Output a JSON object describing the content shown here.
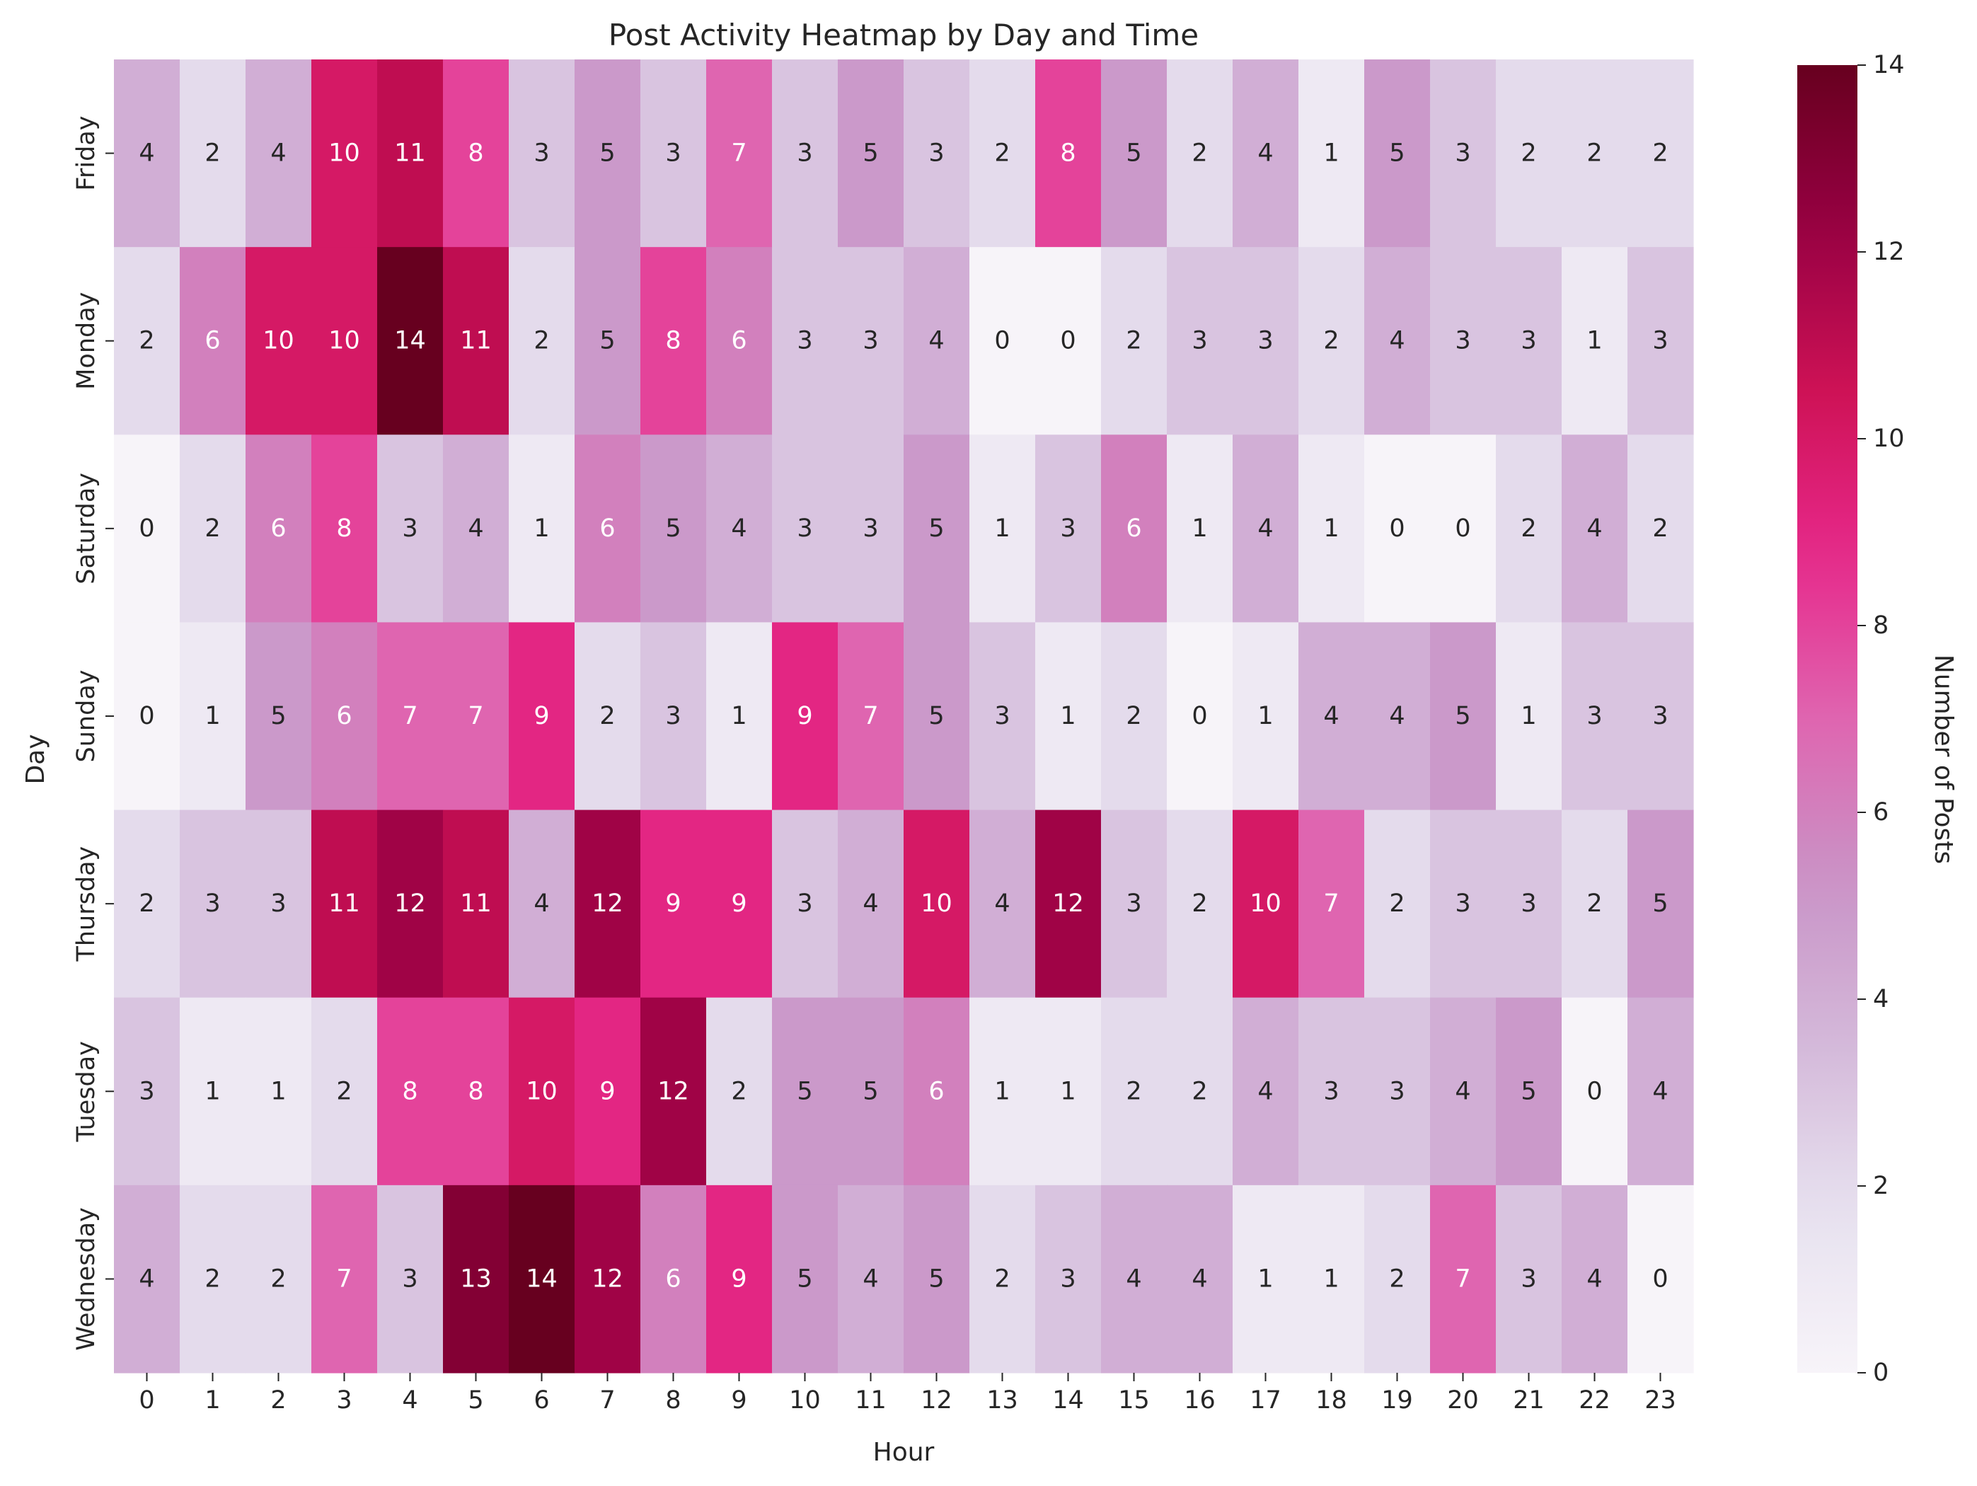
{
  "chart_data": {
    "type": "heatmap",
    "title": "Post Activity Heatmap by Day and Time",
    "xlabel": "Hour",
    "ylabel": "Day",
    "x_categories": [
      "0",
      "1",
      "2",
      "3",
      "4",
      "5",
      "6",
      "7",
      "8",
      "9",
      "10",
      "11",
      "12",
      "13",
      "14",
      "15",
      "16",
      "17",
      "18",
      "19",
      "20",
      "21",
      "22",
      "23"
    ],
    "y_categories": [
      "Friday",
      "Monday",
      "Saturday",
      "Sunday",
      "Thursday",
      "Tuesday",
      "Wednesday"
    ],
    "values": [
      [
        4,
        2,
        4,
        10,
        11,
        8,
        3,
        5,
        3,
        7,
        3,
        5,
        3,
        2,
        8,
        5,
        2,
        4,
        1,
        5,
        3,
        2,
        2,
        2
      ],
      [
        2,
        6,
        10,
        10,
        14,
        11,
        2,
        5,
        8,
        6,
        3,
        3,
        4,
        0,
        0,
        2,
        3,
        3,
        2,
        4,
        3,
        3,
        1,
        3
      ],
      [
        0,
        2,
        6,
        8,
        3,
        4,
        1,
        6,
        5,
        4,
        3,
        3,
        5,
        1,
        3,
        6,
        1,
        4,
        1,
        0,
        0,
        2,
        4,
        2
      ],
      [
        0,
        1,
        5,
        6,
        7,
        7,
        9,
        2,
        3,
        1,
        9,
        7,
        5,
        3,
        1,
        2,
        0,
        1,
        4,
        4,
        5,
        1,
        3,
        3
      ],
      [
        2,
        3,
        3,
        11,
        12,
        11,
        4,
        12,
        9,
        9,
        3,
        4,
        10,
        4,
        12,
        3,
        2,
        10,
        7,
        2,
        3,
        3,
        2,
        5
      ],
      [
        3,
        1,
        1,
        2,
        8,
        8,
        10,
        9,
        12,
        2,
        5,
        5,
        6,
        1,
        1,
        2,
        2,
        4,
        3,
        3,
        4,
        5,
        0,
        4
      ],
      [
        4,
        2,
        2,
        7,
        3,
        13,
        14,
        12,
        6,
        9,
        5,
        4,
        5,
        2,
        3,
        4,
        4,
        1,
        1,
        2,
        7,
        3,
        4,
        0
      ]
    ],
    "colorbar": {
      "label": "Number of Posts",
      "min": 0,
      "max": 14,
      "ticks": [
        "0",
        "2",
        "4",
        "6",
        "8",
        "10",
        "12",
        "14"
      ],
      "colormap": "PuRd"
    },
    "annotations": true,
    "grid": false
  }
}
